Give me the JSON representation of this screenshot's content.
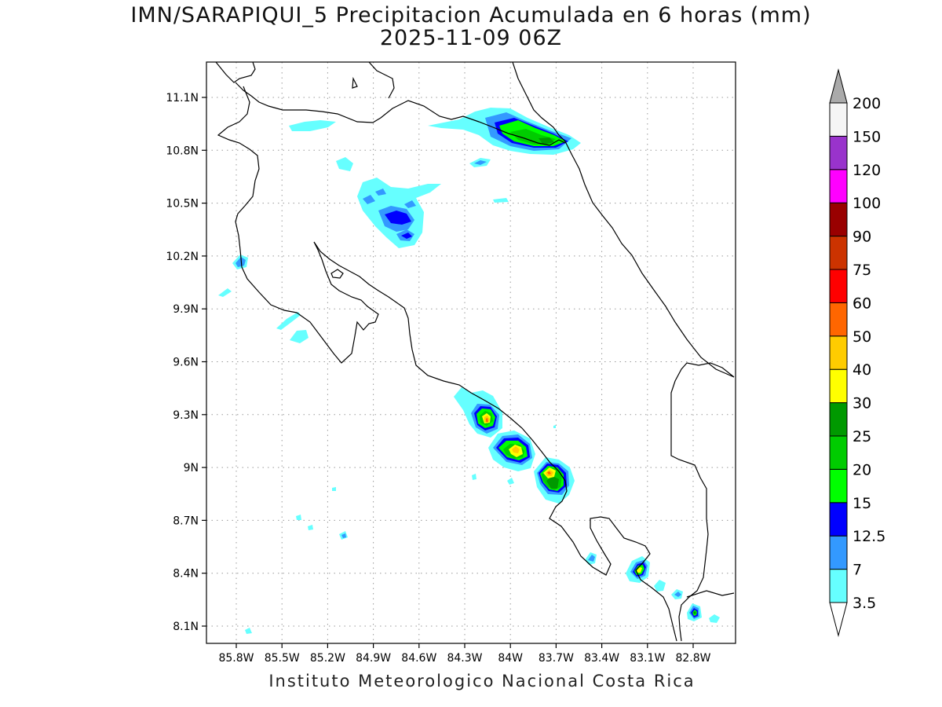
{
  "title_line1": "IMN/SARAPIQUI_5 Precipitacion Acumulada en 6 horas (mm)",
  "title_line2": "2025-11-09 06Z",
  "footer": "Instituto Meteorologico Nacional Costa Rica",
  "lon_ticks": [
    "85.8W",
    "85.5W",
    "85.2W",
    "84.9W",
    "84.6W",
    "84.3W",
    "84W",
    "83.7W",
    "83.4W",
    "83.1W",
    "82.8W"
  ],
  "lat_ticks": [
    "11.1N",
    "10.8N",
    "10.5N",
    "10.2N",
    "9.9N",
    "9.6N",
    "9.3N",
    "9N",
    "8.7N",
    "8.4N",
    "8.1N"
  ],
  "colorbar": {
    "labels": [
      "3.5",
      "7",
      "12.5",
      "15",
      "20",
      "25",
      "30",
      "40",
      "50",
      "60",
      "75",
      "90",
      "100",
      "120",
      "150",
      "200"
    ],
    "colors": [
      "#66ffff",
      "#3399ff",
      "#0000ff",
      "#00ff00",
      "#00cc00",
      "#009900",
      "#ffff00",
      "#ffcc00",
      "#ff6600",
      "#ff0000",
      "#cc3300",
      "#990000",
      "#ff00ff",
      "#9933cc",
      "#f5f5f5",
      "#aaaaaa"
    ]
  }
}
